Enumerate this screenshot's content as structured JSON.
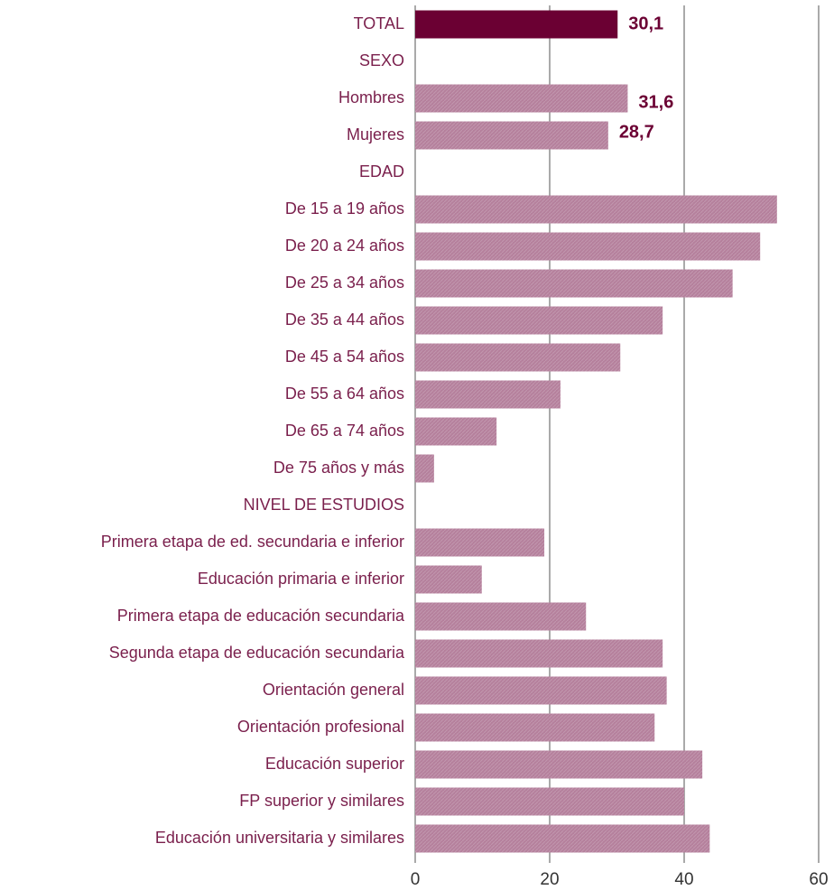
{
  "chart_data": {
    "type": "barh",
    "categories": [
      "TOTAL",
      "SEXO",
      "Hombres",
      "Mujeres",
      "EDAD",
      "De 15 a 19 años",
      "De 20 a 24 años",
      "De 25 a 34 años",
      "De 35 a 44 años",
      "De 45 a 54 años",
      "De 55 a 64 años",
      "De 65 a 74 años",
      "De 75 años y más",
      "NIVEL DE ESTUDIOS",
      "Primera etapa de ed. secundaria e inferior",
      "Educación primaria e inferior",
      "Primera etapa de educación secundaria",
      "Segunda etapa de educación secundaria",
      "Orientación general",
      "Orientación profesional",
      "Educación superior",
      "FP superior y similares",
      "Educación universitaria y similares"
    ],
    "values": [
      30.1,
      null,
      31.6,
      28.7,
      null,
      53.8,
      51.3,
      47.2,
      36.8,
      30.5,
      21.6,
      12.1,
      2.8,
      null,
      19.2,
      9.9,
      25.4,
      36.8,
      37.4,
      35.6,
      42.7,
      40.0,
      43.8
    ],
    "value_labels": [
      "30,1",
      null,
      "31,6",
      "28,7",
      null,
      null,
      null,
      null,
      null,
      null,
      null,
      null,
      null,
      null,
      null,
      null,
      null,
      null,
      null,
      null,
      null,
      null,
      null
    ],
    "colors": [
      "#6b0033",
      null,
      "#b5809c",
      "#b5809c",
      null,
      "#b5809c",
      "#b5809c",
      "#b5809c",
      "#b5809c",
      "#b5809c",
      "#b5809c",
      "#b5809c",
      "#b5809c",
      null,
      "#b5809c",
      "#b5809c",
      "#b5809c",
      "#b5809c",
      "#b5809c",
      "#b5809c",
      "#b5809c",
      "#b5809c",
      "#b5809c"
    ],
    "xlim": [
      0,
      60
    ],
    "xticks": [
      0,
      20,
      40,
      60
    ],
    "grid": true
  }
}
